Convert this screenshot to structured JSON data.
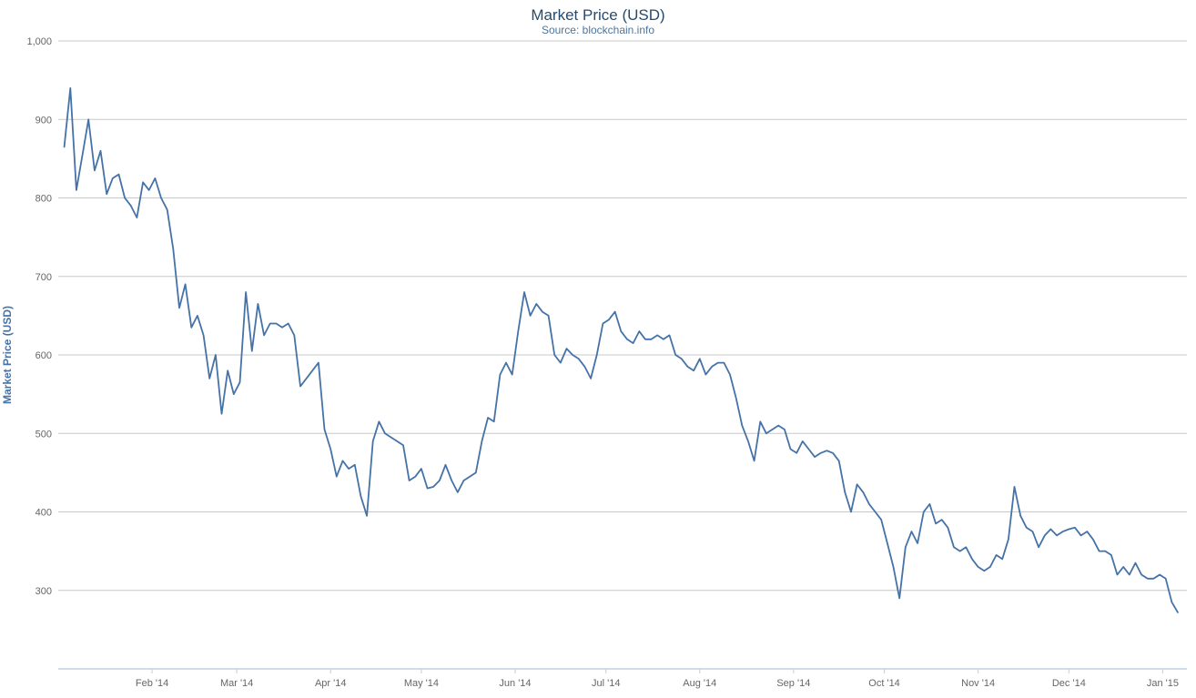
{
  "chart_data": {
    "type": "line",
    "title": "Market Price (USD)",
    "subtitle": "Source: blockchain.info",
    "ylabel": "Market Price (USD)",
    "xlabel": "",
    "legend": "off",
    "grid": "horizontal",
    "ylim": [
      200,
      1000
    ],
    "x_axis_range": {
      "start": "2014-01-01",
      "end": "2015-01-09"
    },
    "y_ticks": [
      {
        "label": "1,000",
        "value": 1000
      },
      {
        "label": "900",
        "value": 900
      },
      {
        "label": "800",
        "value": 800
      },
      {
        "label": "700",
        "value": 700
      },
      {
        "label": "600",
        "value": 600
      },
      {
        "label": "500",
        "value": 500
      },
      {
        "label": "400",
        "value": 400
      },
      {
        "label": "300",
        "value": 300
      }
    ],
    "x_ticks": [
      {
        "label": "Feb '14",
        "date": "2014-02-01"
      },
      {
        "label": "Mar '14",
        "date": "2014-03-01"
      },
      {
        "label": "Apr '14",
        "date": "2014-04-01"
      },
      {
        "label": "May '14",
        "date": "2014-05-01"
      },
      {
        "label": "Jun '14",
        "date": "2014-06-01"
      },
      {
        "label": "Jul '14",
        "date": "2014-07-01"
      },
      {
        "label": "Aug '14",
        "date": "2014-08-01"
      },
      {
        "label": "Sep '14",
        "date": "2014-09-01"
      },
      {
        "label": "Oct '14",
        "date": "2014-10-01"
      },
      {
        "label": "Nov '14",
        "date": "2014-11-01"
      },
      {
        "label": "Dec '14",
        "date": "2014-12-01"
      },
      {
        "label": "Jan '15",
        "date": "2015-01-01"
      }
    ],
    "series": [
      {
        "name": "Market Price (USD)",
        "start": "2014-01-03",
        "step_days": 2,
        "values": [
          865,
          940,
          810,
          855,
          900,
          835,
          860,
          805,
          825,
          830,
          800,
          790,
          775,
          820,
          810,
          825,
          800,
          785,
          735,
          660,
          690,
          635,
          650,
          625,
          570,
          600,
          525,
          580,
          550,
          565,
          680,
          605,
          665,
          625,
          640,
          640,
          635,
          640,
          625,
          560,
          570,
          580,
          590,
          505,
          480,
          445,
          465,
          455,
          460,
          420,
          395,
          490,
          515,
          500,
          495,
          490,
          485,
          440,
          445,
          455,
          430,
          432,
          440,
          460,
          440,
          425,
          440,
          445,
          450,
          490,
          520,
          515,
          575,
          590,
          575,
          630,
          680,
          650,
          665,
          655,
          650,
          600,
          590,
          608,
          600,
          595,
          585,
          570,
          600,
          640,
          645,
          655,
          630,
          620,
          615,
          630,
          620,
          620,
          625,
          620,
          625,
          600,
          595,
          585,
          580,
          595,
          575,
          585,
          590,
          590,
          575,
          545,
          510,
          490,
          465,
          515,
          500,
          505,
          510,
          505,
          480,
          475,
          490,
          480,
          470,
          475,
          478,
          475,
          465,
          425,
          400,
          435,
          425,
          410,
          400,
          390,
          360,
          330,
          290,
          355,
          375,
          360,
          400,
          410,
          385,
          390,
          380,
          355,
          350,
          355,
          340,
          330,
          325,
          330,
          345,
          340,
          365,
          432,
          395,
          380,
          375,
          355,
          370,
          378,
          370,
          375,
          378,
          380,
          370,
          375,
          365,
          350,
          350,
          345,
          320,
          330,
          320,
          335,
          320,
          315,
          315,
          320,
          315,
          285,
          272
        ]
      }
    ],
    "colors": {
      "line": "#4572A7",
      "grid": "#C8C8C8",
      "axis": "#C0D0E0",
      "title": "#274B6D",
      "subtitle": "#4D759E",
      "tick_label": "#666666",
      "y_axis_title": "#4572A7",
      "background": "#FFFFFF"
    }
  }
}
